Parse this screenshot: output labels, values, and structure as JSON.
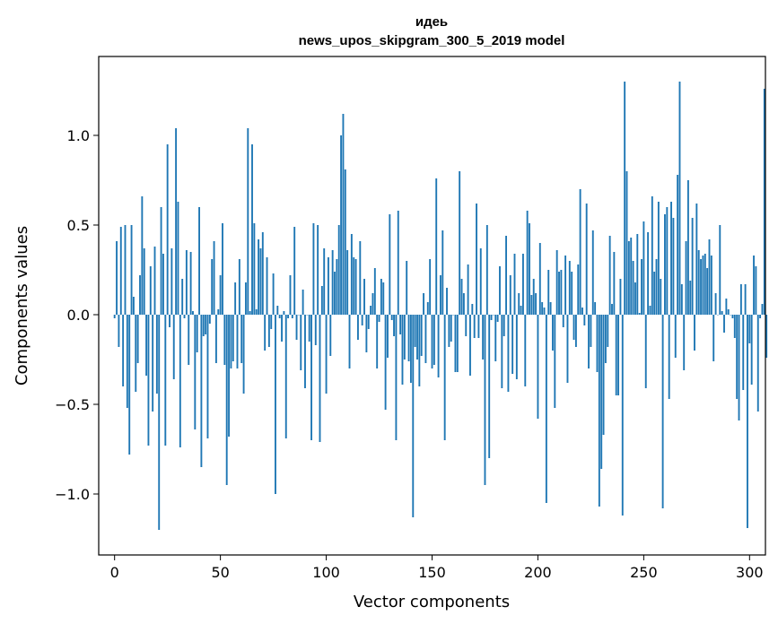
{
  "chart_data": {
    "type": "bar",
    "title": "идеь",
    "subtitle": "news_upos_skipgram_300_5_2019 model",
    "xlabel": "Vector components",
    "ylabel": "Components values",
    "xlim": [
      -7.5,
      307.5
    ],
    "ylim": [
      -1.34,
      1.44
    ],
    "xticks": [
      0,
      50,
      100,
      150,
      200,
      250,
      300
    ],
    "xtick_labels": [
      "0",
      "50",
      "100",
      "150",
      "200",
      "250",
      "300"
    ],
    "yticks": [
      -1.0,
      -0.5,
      0.0,
      0.5,
      1.0
    ],
    "ytick_labels": [
      "−1.0",
      "−0.5",
      "0.0",
      "0.5",
      "1.0"
    ],
    "grid": false,
    "color": "#1f77b4",
    "values": [
      -0.02,
      0.41,
      -0.18,
      0.49,
      -0.4,
      0.5,
      -0.52,
      -0.78,
      0.5,
      0.1,
      -0.43,
      -0.27,
      0.22,
      0.66,
      0.37,
      -0.34,
      -0.73,
      0.27,
      -0.54,
      0.38,
      -0.44,
      -1.2,
      0.6,
      0.34,
      -0.73,
      0.95,
      -0.07,
      0.37,
      -0.36,
      1.04,
      0.63,
      -0.74,
      0.2,
      -0.02,
      0.36,
      -0.28,
      0.35,
      0.02,
      -0.64,
      -0.21,
      0.6,
      -0.85,
      -0.12,
      -0.11,
      -0.69,
      -0.05,
      0.31,
      0.41,
      -0.27,
      0.03,
      0.22,
      0.51,
      -0.28,
      -0.95,
      -0.68,
      -0.3,
      -0.26,
      0.18,
      -0.3,
      0.31,
      -0.27,
      -0.44,
      0.18,
      1.04,
      0.02,
      0.95,
      0.51,
      0.03,
      0.42,
      0.37,
      0.46,
      -0.2,
      0.32,
      -0.18,
      -0.08,
      0.23,
      -1.0,
      0.05,
      -0.02,
      -0.15,
      0.02,
      -0.69,
      -0.02,
      0.22,
      -0.02,
      0.49,
      -0.14,
      0.0,
      -0.31,
      0.14,
      -0.41,
      0.0,
      -0.15,
      -0.7,
      0.51,
      -0.17,
      0.5,
      -0.71,
      0.16,
      0.37,
      -0.44,
      0.32,
      -0.23,
      0.36,
      0.24,
      0.31,
      0.5,
      1.0,
      1.12,
      0.81,
      0.36,
      -0.3,
      0.45,
      0.32,
      0.31,
      -0.14,
      0.41,
      -0.06,
      0.2,
      -0.21,
      -0.08,
      0.05,
      0.12,
      0.26,
      -0.3,
      -0.04,
      0.2,
      0.18,
      -0.53,
      -0.24,
      0.56,
      -0.03,
      -0.12,
      -0.7,
      0.58,
      -0.11,
      -0.39,
      -0.25,
      0.3,
      -0.26,
      -0.38,
      -1.13,
      -0.18,
      -0.25,
      -0.4,
      -0.23,
      0.12,
      -0.27,
      0.07,
      0.31,
      -0.3,
      -0.28,
      0.76,
      -0.35,
      0.22,
      0.47,
      -0.7,
      0.15,
      -0.18,
      -0.15,
      0.0,
      -0.32,
      -0.32,
      0.8,
      0.2,
      0.12,
      -0.12,
      0.28,
      -0.34,
      0.06,
      -0.13,
      0.62,
      -0.13,
      0.37,
      -0.25,
      -0.95,
      0.5,
      -0.8,
      -0.03,
      0.0,
      -0.26,
      -0.04,
      0.27,
      -0.41,
      -0.12,
      0.44,
      -0.43,
      0.22,
      -0.33,
      0.34,
      -0.36,
      0.12,
      0.05,
      0.34,
      -0.4,
      0.58,
      0.51,
      0.11,
      0.2,
      0.12,
      -0.58,
      0.4,
      0.07,
      0.04,
      -1.05,
      0.25,
      0.07,
      -0.2,
      -0.52,
      0.36,
      0.24,
      0.25,
      -0.07,
      0.33,
      -0.38,
      0.3,
      0.24,
      -0.14,
      -0.18,
      0.28,
      0.7,
      0.04,
      -0.06,
      0.62,
      -0.3,
      -0.18,
      0.47,
      0.07,
      -0.32,
      -1.07,
      -0.86,
      -0.67,
      -0.27,
      -0.18,
      0.44,
      0.06,
      0.35,
      -0.45,
      -0.45,
      0.2,
      -1.12,
      1.3,
      0.8,
      0.41,
      0.43,
      0.3,
      0.18,
      0.45,
      0.01,
      0.31,
      0.52,
      -0.41,
      0.46,
      0.05,
      0.66,
      0.24,
      0.31,
      0.63,
      0.2,
      -1.08,
      0.56,
      0.6,
      -0.47,
      0.63,
      0.54,
      -0.24,
      0.78,
      1.3,
      0.17,
      -0.31,
      0.41,
      0.75,
      0.19,
      0.54,
      -0.2,
      0.62,
      0.36,
      0.31,
      0.33,
      0.34,
      0.26,
      0.42,
      0.33,
      -0.26,
      0.12,
      0.0,
      0.5,
      0.02,
      -0.1,
      0.09,
      0.03,
      0.0,
      -0.02,
      -0.13,
      -0.47,
      -0.59,
      0.17,
      -0.42,
      0.17,
      -1.19,
      -0.16,
      -0.39,
      0.33,
      0.27,
      -0.54,
      -0.02,
      0.06,
      1.26,
      -0.24
    ]
  }
}
